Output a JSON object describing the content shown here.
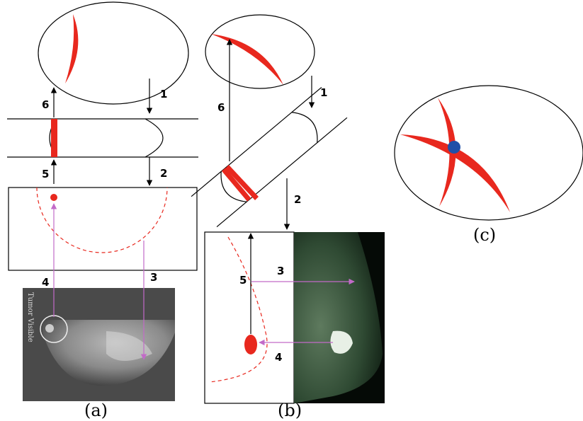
{
  "panels": {
    "a": {
      "caption": "(a)",
      "steps": [
        "1",
        "2",
        "3",
        "4",
        "5",
        "6"
      ],
      "film_label": "Tumor Visible"
    },
    "b": {
      "caption": "(b)",
      "steps": [
        "1",
        "2",
        "3",
        "4",
        "5",
        "6"
      ]
    },
    "c": {
      "caption": "(c)"
    }
  },
  "colors": {
    "lesion": "#e8281e",
    "projection_arrow": "#c26ac8",
    "intersection": "#1f4fa8",
    "outline": "#000000"
  },
  "icons": [
    "compression-paddle-shape",
    "mammogram-film-image",
    "tumor-intersection-marker"
  ]
}
